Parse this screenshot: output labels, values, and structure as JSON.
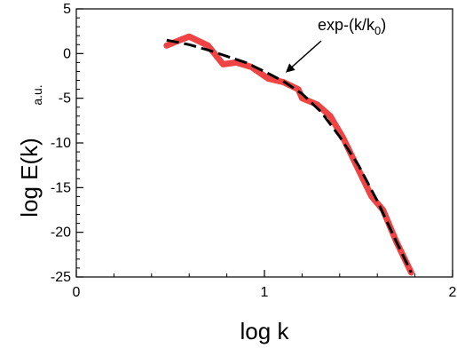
{
  "chart_data": {
    "type": "line",
    "title": "",
    "xlabel": "log k",
    "ylabel": "log E(k)",
    "y_unit": "a.u.",
    "xlim": [
      0,
      2
    ],
    "ylim": [
      -25,
      5
    ],
    "x_ticks": [
      0,
      1,
      2
    ],
    "x_tick_labels": [
      "0",
      "1",
      "2"
    ],
    "y_ticks": [
      5,
      0,
      -5,
      -10,
      -15,
      -20,
      -25
    ],
    "y_tick_labels": [
      "5",
      "0",
      "-5",
      "-10",
      "-15",
      "-20",
      "-25"
    ],
    "grid": false,
    "annotation": {
      "prefix": "exp-(k/k",
      "sub": "0",
      "suffix": ")",
      "arrow_to": [
        1.12,
        -2.0
      ]
    },
    "series": [
      {
        "color": "#f04444",
        "style": "solid-thick",
        "x": [
          0.48,
          0.55,
          0.6,
          0.7,
          0.78,
          0.85,
          0.93,
          1.02,
          1.1,
          1.18,
          1.2,
          1.28,
          1.35,
          1.42,
          1.5,
          1.57,
          1.63,
          1.7,
          1.78
        ],
        "y": [
          0.9,
          1.5,
          1.9,
          0.9,
          -1.2,
          -1.0,
          -1.5,
          -2.8,
          -3.2,
          -4.0,
          -5.0,
          -5.7,
          -7.0,
          -9.5,
          -13.0,
          -16.0,
          -17.5,
          -21.0,
          -24.5
        ]
      },
      {
        "color": "#000000",
        "style": "dashed",
        "x": [
          0.48,
          0.6,
          0.7,
          0.8,
          0.9,
          1.0,
          1.1,
          1.2,
          1.3,
          1.4,
          1.5,
          1.6,
          1.7,
          1.78
        ],
        "y": [
          1.5,
          1.0,
          0.4,
          -0.3,
          -1.0,
          -2.0,
          -3.1,
          -4.5,
          -6.5,
          -9.3,
          -12.5,
          -16.5,
          -21.0,
          -24.5
        ]
      }
    ]
  }
}
